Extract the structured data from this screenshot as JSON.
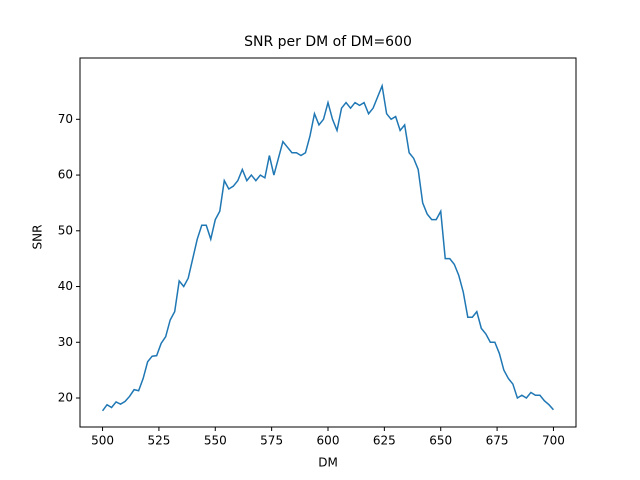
{
  "chart_data": {
    "type": "line",
    "title": "SNR per DM of DM=600",
    "x_label": "DM",
    "y_label": "SNR",
    "x": [
      500,
      502,
      504,
      506,
      508,
      510,
      512,
      514,
      516,
      518,
      520,
      522,
      524,
      526,
      528,
      530,
      532,
      534,
      536,
      538,
      540,
      542,
      544,
      546,
      548,
      550,
      552,
      554,
      556,
      558,
      560,
      562,
      564,
      566,
      568,
      570,
      572,
      574,
      576,
      578,
      580,
      582,
      584,
      586,
      588,
      590,
      592,
      594,
      596,
      598,
      600,
      602,
      604,
      606,
      608,
      610,
      612,
      614,
      616,
      618,
      620,
      622,
      624,
      626,
      628,
      630,
      632,
      634,
      636,
      638,
      640,
      642,
      644,
      646,
      648,
      650,
      652,
      654,
      656,
      658,
      660,
      662,
      664,
      666,
      668,
      670,
      672,
      674,
      676,
      678,
      680,
      682,
      684,
      686,
      688,
      690,
      692,
      694,
      696,
      698,
      700
    ],
    "series": [
      {
        "name": "SNR",
        "color": "#1f77b4",
        "values": [
          17.7,
          18.8,
          18.3,
          19.3,
          18.9,
          19.4,
          20.3,
          21.5,
          21.3,
          23.5,
          26.5,
          27.5,
          27.6,
          29.8,
          31,
          34,
          35.5,
          41,
          40,
          41.5,
          45,
          48.5,
          51,
          51,
          48.5,
          52,
          53.5,
          59,
          57.5,
          58,
          59,
          61,
          59,
          60,
          59,
          60,
          59.5,
          63.5,
          60,
          63,
          66,
          65,
          64,
          64,
          63.5,
          64,
          67,
          71,
          69,
          70,
          73,
          70,
          68,
          72,
          73,
          72,
          73,
          72.5,
          73,
          71,
          72,
          74,
          76,
          71,
          70,
          70.5,
          68,
          69,
          64,
          63,
          61,
          55,
          53,
          52,
          52,
          53.5,
          45,
          45,
          44,
          42,
          39,
          34.5,
          34.5,
          35.5,
          32.5,
          31.5,
          30,
          30,
          28,
          25,
          23.5,
          22.5,
          20,
          20.5,
          20,
          21,
          20.5,
          20.5,
          19.5,
          18.8,
          17.9
        ]
      }
    ],
    "xlim": [
      490,
      710
    ],
    "ylim": [
      14.8,
      81.0
    ],
    "xticks": [
      500,
      525,
      550,
      575,
      600,
      625,
      650,
      675,
      700
    ],
    "yticks": [
      20,
      30,
      40,
      50,
      60,
      70
    ]
  }
}
